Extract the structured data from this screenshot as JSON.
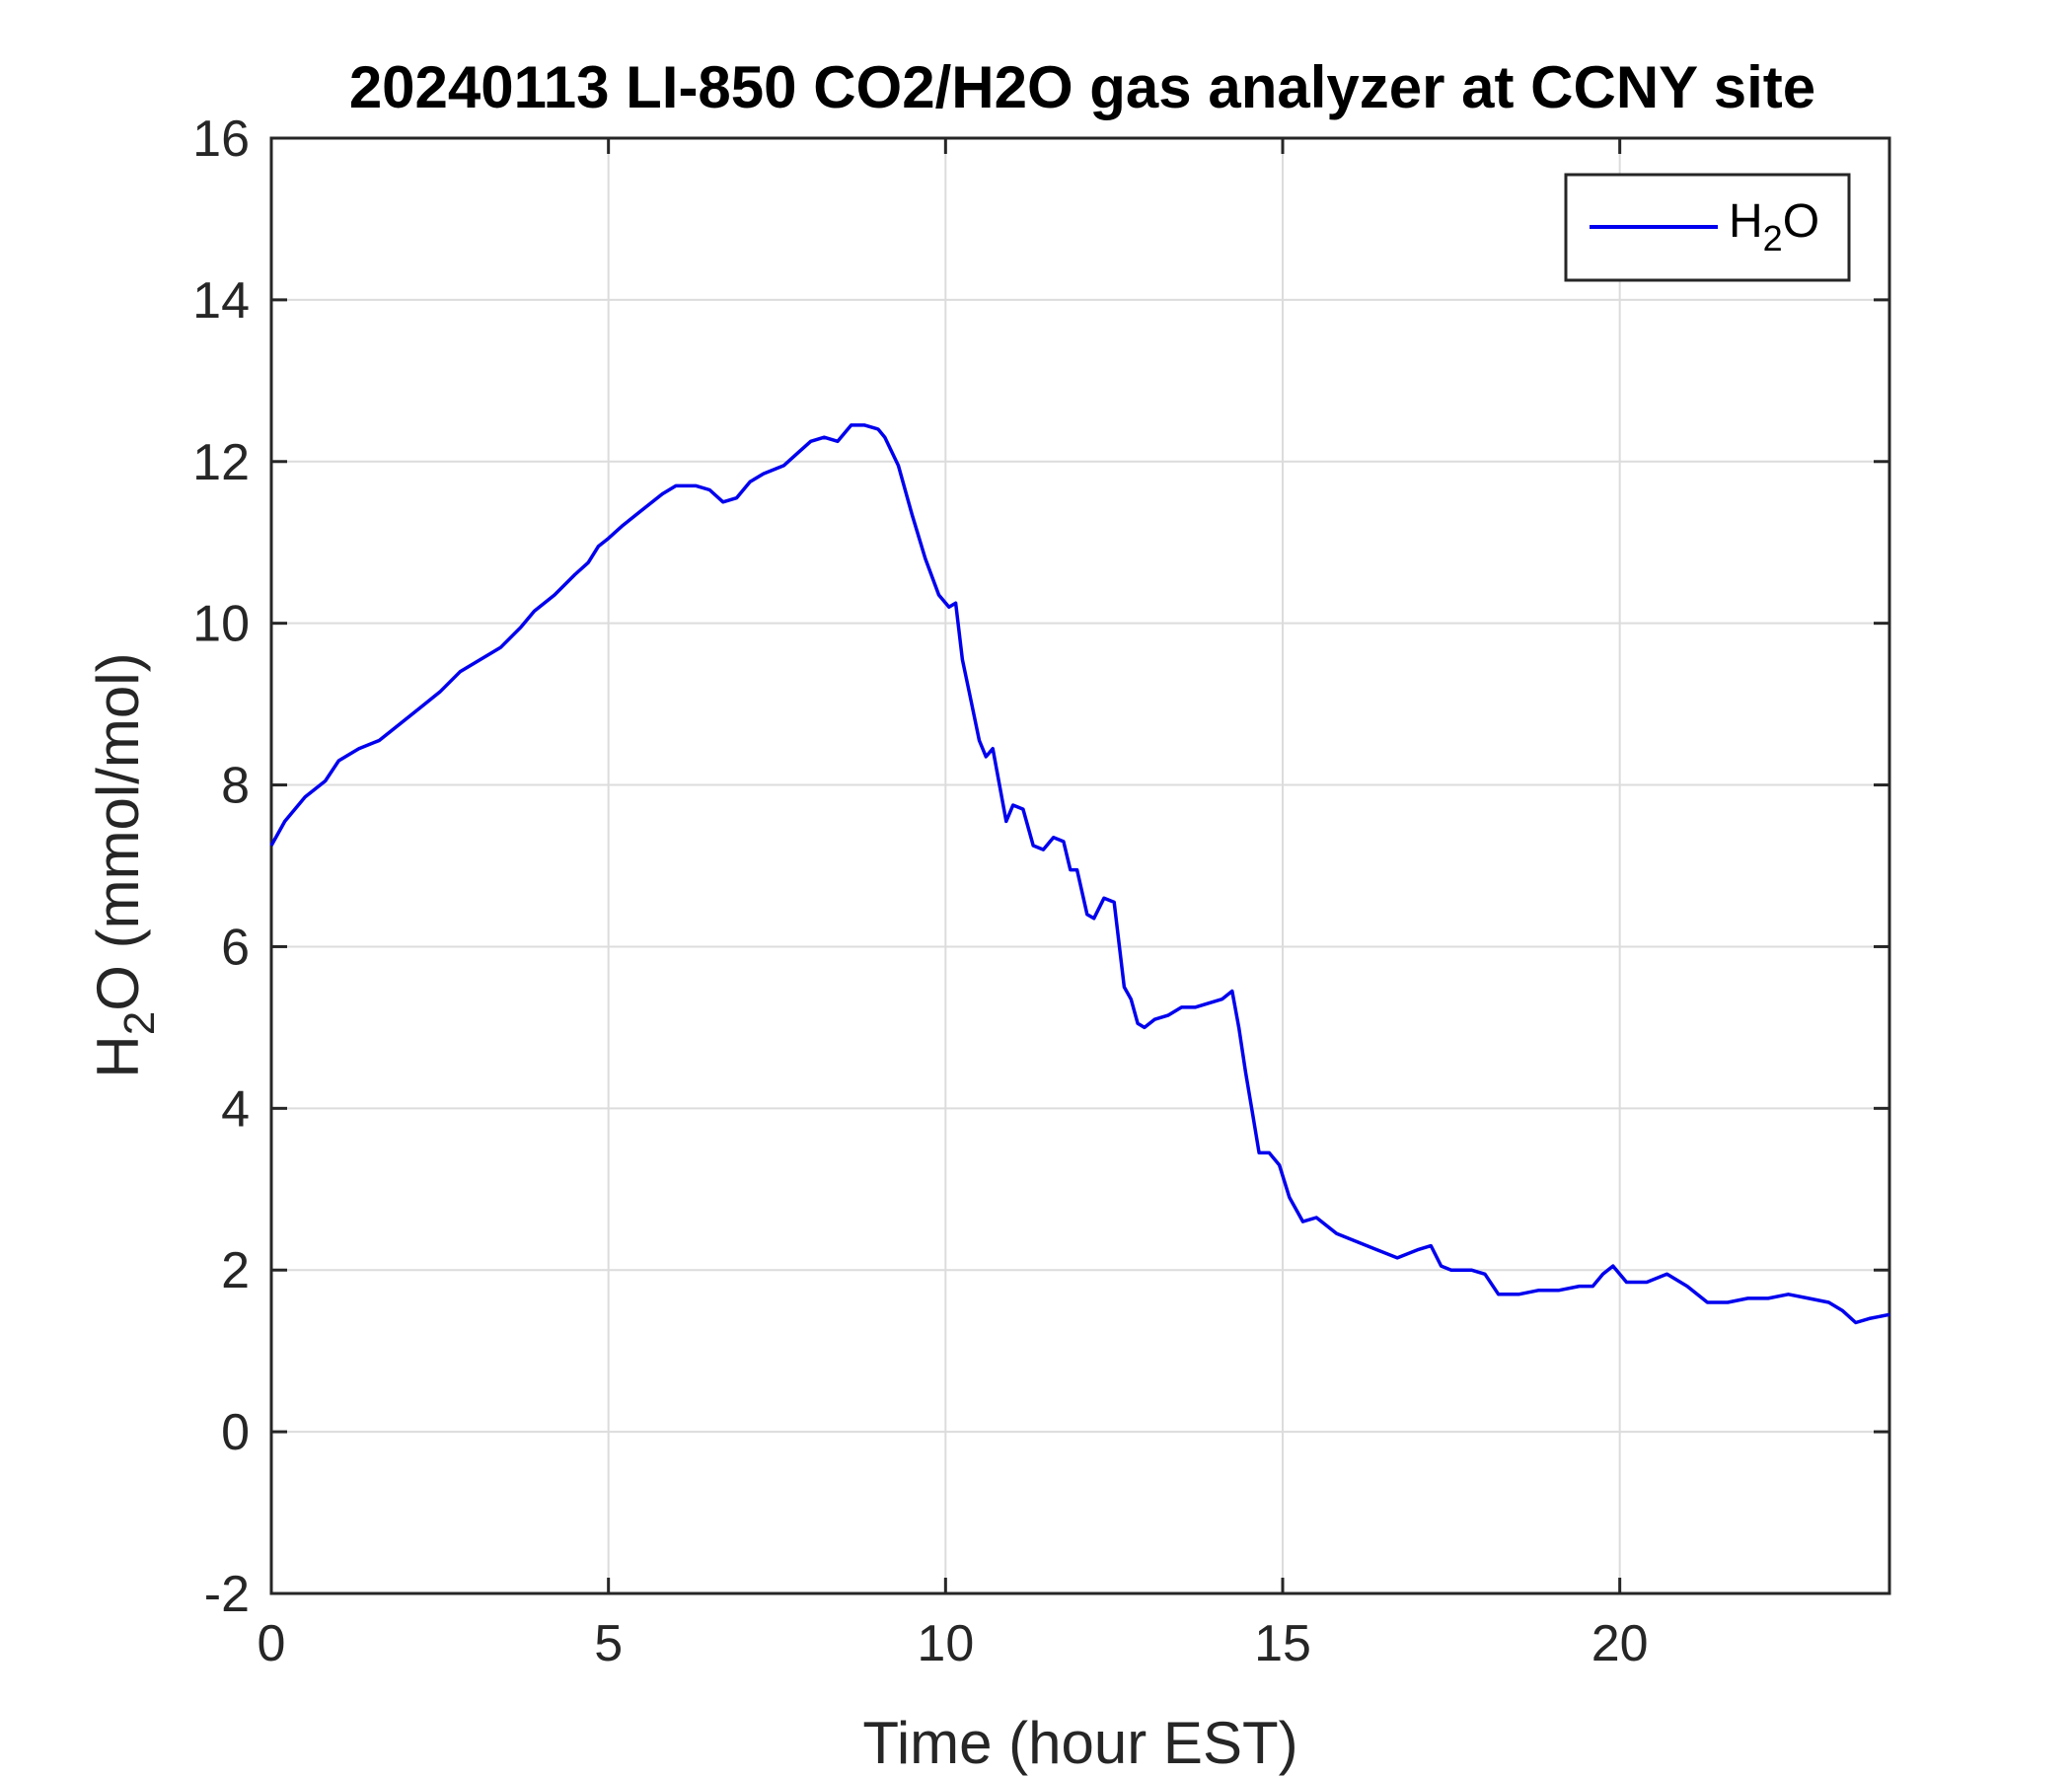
{
  "chart_data": {
    "type": "line",
    "title": "20240113 LI-850 CO2/H2O gas analyzer at CCNY site",
    "xlabel": "Time (hour EST)",
    "ylabel": {
      "main": "H",
      "sub": "2",
      "rest": "O (mmol/mol)"
    },
    "xlim": [
      0,
      24
    ],
    "ylim": [
      -2,
      16
    ],
    "xticks": [
      0,
      5,
      10,
      15,
      20
    ],
    "yticks": [
      -2,
      0,
      2,
      4,
      6,
      8,
      10,
      12,
      14,
      16
    ],
    "grid": true,
    "legend_position": "top-right",
    "series": [
      {
        "name": {
          "main": "H",
          "sub": "2",
          "rest": "O"
        },
        "color": "#0000ee",
        "x": [
          0,
          0.2,
          0.5,
          0.8,
          1.0,
          1.3,
          1.6,
          1.9,
          2.2,
          2.5,
          2.8,
          3.1,
          3.4,
          3.7,
          3.9,
          4.2,
          4.5,
          4.7,
          4.85,
          5.0,
          5.2,
          5.5,
          5.8,
          6.0,
          6.3,
          6.5,
          6.7,
          6.9,
          7.1,
          7.3,
          7.6,
          7.8,
          8.0,
          8.2,
          8.4,
          8.6,
          8.8,
          9.0,
          9.1,
          9.3,
          9.5,
          9.7,
          9.9,
          10.05,
          10.15,
          10.25,
          10.35,
          10.5,
          10.6,
          10.7,
          10.8,
          10.9,
          11.0,
          11.15,
          11.3,
          11.45,
          11.6,
          11.75,
          11.85,
          11.95,
          12.1,
          12.2,
          12.35,
          12.5,
          12.65,
          12.75,
          12.85,
          12.95,
          13.1,
          13.3,
          13.5,
          13.7,
          13.9,
          14.1,
          14.25,
          14.35,
          14.45,
          14.55,
          14.65,
          14.8,
          14.95,
          15.1,
          15.3,
          15.5,
          15.8,
          16.1,
          16.4,
          16.7,
          17.0,
          17.2,
          17.35,
          17.5,
          17.8,
          18.0,
          18.2,
          18.5,
          18.8,
          19.1,
          19.4,
          19.6,
          19.75,
          19.9,
          20.1,
          20.4,
          20.7,
          21.0,
          21.3,
          21.6,
          21.9,
          22.2,
          22.5,
          22.8,
          23.1,
          23.3,
          23.5,
          23.7,
          24.0
        ],
        "y": [
          7.25,
          7.55,
          7.85,
          8.05,
          8.3,
          8.45,
          8.55,
          8.75,
          8.95,
          9.15,
          9.4,
          9.55,
          9.7,
          9.95,
          10.15,
          10.35,
          10.6,
          10.75,
          10.95,
          11.05,
          11.2,
          11.4,
          11.6,
          11.7,
          11.7,
          11.65,
          11.5,
          11.55,
          11.75,
          11.85,
          11.95,
          12.1,
          12.25,
          12.3,
          12.25,
          12.45,
          12.45,
          12.4,
          12.3,
          11.95,
          11.35,
          10.8,
          10.35,
          10.2,
          10.25,
          9.55,
          9.15,
          8.55,
          8.35,
          8.45,
          8.0,
          7.55,
          7.75,
          7.7,
          7.25,
          7.2,
          7.35,
          7.3,
          6.95,
          6.95,
          6.4,
          6.35,
          6.6,
          6.55,
          5.5,
          5.35,
          5.05,
          5.0,
          5.1,
          5.15,
          5.25,
          5.25,
          5.3,
          5.35,
          5.45,
          5.0,
          4.45,
          3.95,
          3.45,
          3.45,
          3.3,
          2.9,
          2.6,
          2.65,
          2.45,
          2.35,
          2.25,
          2.15,
          2.25,
          2.3,
          2.05,
          2.0,
          2.0,
          1.95,
          1.7,
          1.7,
          1.75,
          1.75,
          1.8,
          1.8,
          1.95,
          2.05,
          1.85,
          1.85,
          1.95,
          1.8,
          1.6,
          1.6,
          1.65,
          1.65,
          1.7,
          1.65,
          1.6,
          1.5,
          1.35,
          1.4,
          1.45
        ]
      }
    ]
  }
}
